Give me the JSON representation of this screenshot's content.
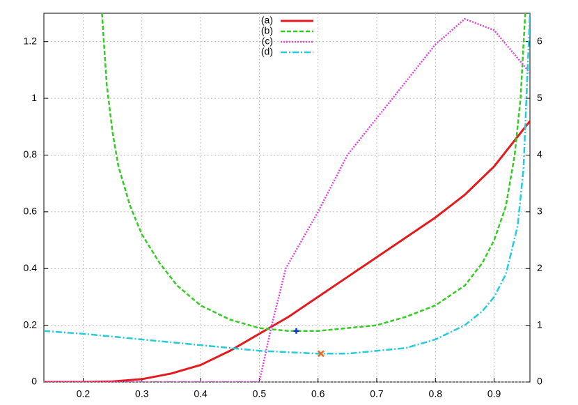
{
  "chart_data": {
    "type": "line",
    "xlim": [
      0.133,
      0.961
    ],
    "xticks": [
      0.2,
      0.3,
      0.4,
      0.5,
      0.6,
      0.7,
      0.8,
      0.9
    ],
    "ylim": [
      0,
      1.3
    ],
    "yticks": [
      0,
      0.2,
      0.4,
      0.6,
      0.8,
      1,
      1.2
    ],
    "y2lim": [
      0,
      6.5
    ],
    "y2ticks": [
      0,
      1,
      2,
      3,
      4,
      5,
      6
    ],
    "grid": true,
    "legend": "top",
    "series": [
      {
        "name": "(a)",
        "color": "#e41a1c",
        "dash": "solid",
        "x": [
          0.133,
          0.2,
          0.25,
          0.3,
          0.35,
          0.4,
          0.45,
          0.5,
          0.55,
          0.6,
          0.65,
          0.7,
          0.75,
          0.8,
          0.85,
          0.9,
          0.961
        ],
        "values": [
          0,
          0,
          0.002,
          0.01,
          0.03,
          0.06,
          0.11,
          0.17,
          0.23,
          0.3,
          0.37,
          0.44,
          0.51,
          0.58,
          0.66,
          0.76,
          0.92
        ]
      },
      {
        "name": "(b)",
        "color": "#33cc22",
        "dash": "dashed",
        "x": [
          0.232,
          0.24,
          0.25,
          0.26,
          0.28,
          0.3,
          0.33,
          0.36,
          0.4,
          0.45,
          0.5,
          0.55,
          0.6,
          0.65,
          0.7,
          0.75,
          0.8,
          0.85,
          0.88,
          0.9,
          0.92,
          0.935,
          0.945,
          0.953
        ],
        "values": [
          1.3,
          1.05,
          0.88,
          0.76,
          0.62,
          0.52,
          0.42,
          0.34,
          0.27,
          0.22,
          0.19,
          0.18,
          0.18,
          0.19,
          0.2,
          0.23,
          0.27,
          0.34,
          0.42,
          0.5,
          0.62,
          0.8,
          1.0,
          1.3
        ]
      },
      {
        "name": "(c)",
        "color": "#dd44dd",
        "dash": "dotted",
        "axis": "y2",
        "x": [
          0.133,
          0.5,
          0.52,
          0.545,
          0.6,
          0.65,
          0.7,
          0.75,
          0.8,
          0.85,
          0.9,
          0.961
        ],
        "values": [
          0,
          0,
          0.95,
          2.0,
          3.0,
          4.0,
          4.65,
          5.3,
          5.95,
          6.4,
          6.2,
          5.45
        ]
      },
      {
        "name": "(d)",
        "color": "#22ccdd",
        "dash": "dashdot",
        "x": [
          0.133,
          0.2,
          0.3,
          0.4,
          0.5,
          0.6,
          0.65,
          0.7,
          0.75,
          0.8,
          0.85,
          0.88,
          0.9,
          0.92,
          0.94,
          0.95,
          0.961
        ],
        "values": [
          0.18,
          0.17,
          0.15,
          0.13,
          0.11,
          0.1,
          0.1,
          0.11,
          0.12,
          0.15,
          0.2,
          0.25,
          0.3,
          0.38,
          0.55,
          0.75,
          1.3
        ]
      }
    ],
    "markers": [
      {
        "x": 0.563,
        "y": 0.18,
        "color": "#1133cc",
        "symbol": "plus"
      },
      {
        "x": 0.605,
        "y": 0.1,
        "color": "#ee6622",
        "symbol": "cross"
      }
    ]
  }
}
